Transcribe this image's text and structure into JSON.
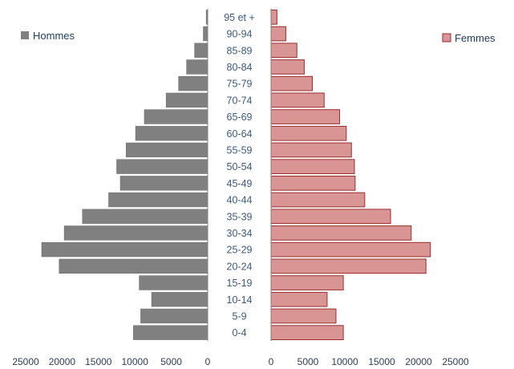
{
  "chart_data": {
    "type": "bar",
    "orientation": "horizontal",
    "layout": "population-pyramid",
    "categories": [
      "0-4",
      "5-9",
      "10-14",
      "15-19",
      "20-24",
      "25-29",
      "30-34",
      "35-39",
      "40-44",
      "45-49",
      "50-54",
      "55-59",
      "60-64",
      "65-69",
      "70-74",
      "75-79",
      "80-84",
      "85-89",
      "90-94",
      "95 et +"
    ],
    "series": [
      {
        "name": "Hommes",
        "side": "left",
        "color": "#808080",
        "values": [
          10200,
          9200,
          7700,
          9400,
          20400,
          22800,
          19700,
          17200,
          13600,
          12000,
          12500,
          11200,
          9900,
          8700,
          5700,
          4000,
          2900,
          1800,
          600,
          200
        ]
      },
      {
        "name": "Femmes",
        "side": "right",
        "color": "#d99594",
        "edge_color": "#9b2c2c",
        "values": [
          9800,
          8800,
          7600,
          9800,
          21000,
          21600,
          19000,
          16200,
          12700,
          11400,
          11300,
          10900,
          10200,
          9300,
          7200,
          5600,
          4500,
          3500,
          2000,
          800
        ]
      }
    ],
    "x_ticks": [
      "25000",
      "20000",
      "15000",
      "10000",
      "5000",
      "0"
    ],
    "x_ticks_right": [
      "0",
      "5000",
      "10000",
      "15000",
      "20000",
      "25000"
    ],
    "xlim": [
      0,
      25000
    ],
    "grid": false,
    "legend": [
      "top-left",
      "top-right"
    ]
  }
}
